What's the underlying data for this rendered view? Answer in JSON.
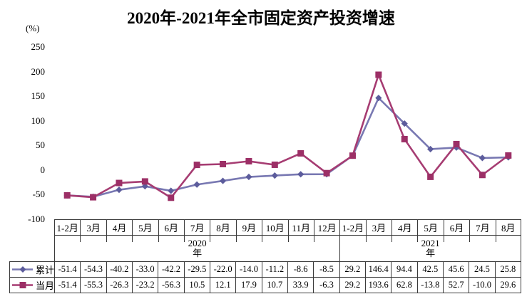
{
  "title": "2020年-2021年全市固定资产投资增速",
  "y_axis_unit": "(%)",
  "colors": {
    "cumulative_line": "#7878B2",
    "cumulative_marker": "#5C5C9C",
    "monthly_line": "#A63C72",
    "monthly_marker": "#9C2F66",
    "axis_border": "#3a3a3a",
    "text": "#000000",
    "background": "#ffffff"
  },
  "chart_data": {
    "type": "line",
    "title": "2020年-2021年全市固定资产投资增速",
    "ylabel": "(%)",
    "xlabel": "",
    "ylim": [
      -100,
      250
    ],
    "yticks": [
      250,
      200,
      150,
      100,
      50,
      0,
      -50,
      -100
    ],
    "grid": false,
    "legend_position": "data-table-left",
    "categories": [
      "1-2月",
      "3月",
      "4月",
      "5月",
      "6月",
      "7月",
      "8月",
      "9月",
      "10月",
      "11月",
      "12月",
      "1-2月",
      "3月",
      "4月",
      "5月",
      "6月",
      "7月",
      "8月"
    ],
    "year_groups": [
      {
        "label": "2020年",
        "span": 11
      },
      {
        "label": "2021年",
        "span": 7
      }
    ],
    "series": [
      {
        "name": "累计",
        "marker": "diamond",
        "color": "#7878B2",
        "marker_color": "#5C5C9C",
        "values": [
          -51.4,
          -54.3,
          -40.2,
          -33.0,
          -42.2,
          -29.5,
          -22.0,
          -14.0,
          -11.2,
          -8.6,
          -8.5,
          29.2,
          146.4,
          94.4,
          42.5,
          45.6,
          24.5,
          25.8
        ]
      },
      {
        "name": "当月",
        "marker": "square",
        "color": "#A63C72",
        "marker_color": "#9C2F66",
        "values": [
          -51.4,
          -55.3,
          -26.3,
          -23.2,
          -56.3,
          10.5,
          12.1,
          17.9,
          10.7,
          33.9,
          -6.3,
          29.2,
          193.6,
          62.8,
          -13.8,
          52.7,
          -10.0,
          29.6
        ]
      }
    ]
  }
}
